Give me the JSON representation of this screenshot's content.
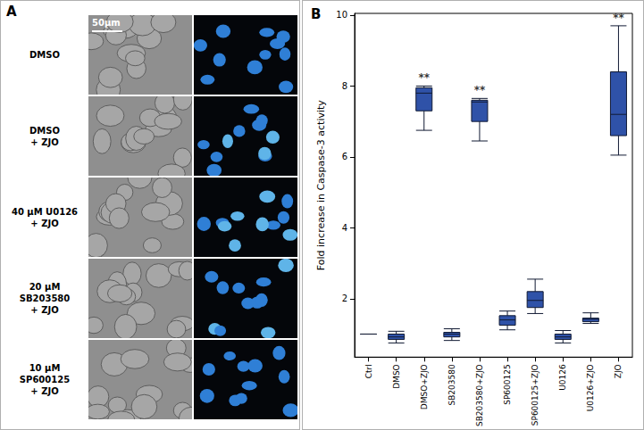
{
  "panel_a": {
    "label": "A",
    "scale_bar": "50μm",
    "rows": [
      [
        "DMSO"
      ],
      [
        "DMSO",
        "+ ZJO"
      ],
      [
        "40 μM U0126",
        "+ ZJO"
      ],
      [
        "20 μM SB203580",
        "+ ZJO"
      ],
      [
        "10 μM SP600125",
        "+ ZJO"
      ]
    ]
  },
  "chart_data": {
    "type": "boxplot",
    "title": "B",
    "y_label": "Fold increase in Caspase-3 activity",
    "categories": [
      "Ctrl",
      "DMSO",
      "DMSO+ZJO",
      "SB203580",
      "SB203580+ZJO",
      "SP600125",
      "SP600125+ZJO",
      "U0126",
      "U0126+ZJO",
      "ZJO"
    ],
    "values": [
      [
        1,
        1,
        1,
        1,
        1
      ],
      [
        0.75,
        0.85,
        0.92,
        1.0,
        1.08
      ],
      [
        6.75,
        7.3,
        7.8,
        7.95,
        8.0
      ],
      [
        0.82,
        0.92,
        1.0,
        1.05,
        1.15
      ],
      [
        6.45,
        7.0,
        7.55,
        7.6,
        7.65
      ],
      [
        1.12,
        1.25,
        1.4,
        1.52,
        1.65
      ],
      [
        1.58,
        1.75,
        1.95,
        2.2,
        2.55
      ],
      [
        0.75,
        0.85,
        0.92,
        1.0,
        1.1
      ],
      [
        1.3,
        1.35,
        1.42,
        1.45,
        1.6
      ],
      [
        6.05,
        6.6,
        7.2,
        8.4,
        9.7
      ]
    ],
    "color": "#2f52a8",
    "annotations": [
      {
        "category": "DMSO+ZJO",
        "text": "**"
      },
      {
        "category": "SB203580+ZJO",
        "text": "**"
      },
      {
        "category": "ZJO",
        "text": "**"
      }
    ],
    "ylim": [
      0.35,
      10.05
    ],
    "yticks": [
      2,
      4,
      6,
      8,
      10
    ],
    "grid": false
  }
}
